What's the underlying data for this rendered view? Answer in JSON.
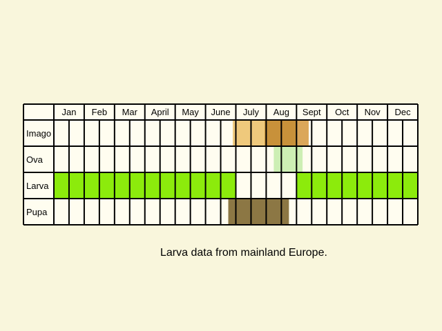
{
  "chart_data": {
    "type": "table",
    "months": [
      "Jan",
      "Feb",
      "Mar",
      "April",
      "May",
      "June",
      "July",
      "Aug",
      "Sept",
      "Oct",
      "Nov",
      "Dec"
    ],
    "stages": [
      {
        "name": "Imago",
        "color": "#efc97c",
        "intervals": [
          [
            5.9,
            8.4
          ]
        ],
        "peak": {
          "color": "#c8913a",
          "intervals": [
            [
              6.95,
              8.0
            ]
          ]
        },
        "peak_edge_color": "#dba75a"
      },
      {
        "name": "Ova",
        "color": "#cdefb4",
        "intervals": [
          [
            7.25,
            8.2
          ]
        ]
      },
      {
        "name": "Larva",
        "color": "#8ceb0c",
        "intervals": [
          [
            0.0,
            6.0
          ],
          [
            8.0,
            12.0
          ]
        ]
      },
      {
        "name": "Pupa",
        "color": "#8c7744",
        "intervals": [
          [
            5.75,
            7.75
          ]
        ]
      }
    ]
  },
  "note": "Larva data from mainland Europe."
}
